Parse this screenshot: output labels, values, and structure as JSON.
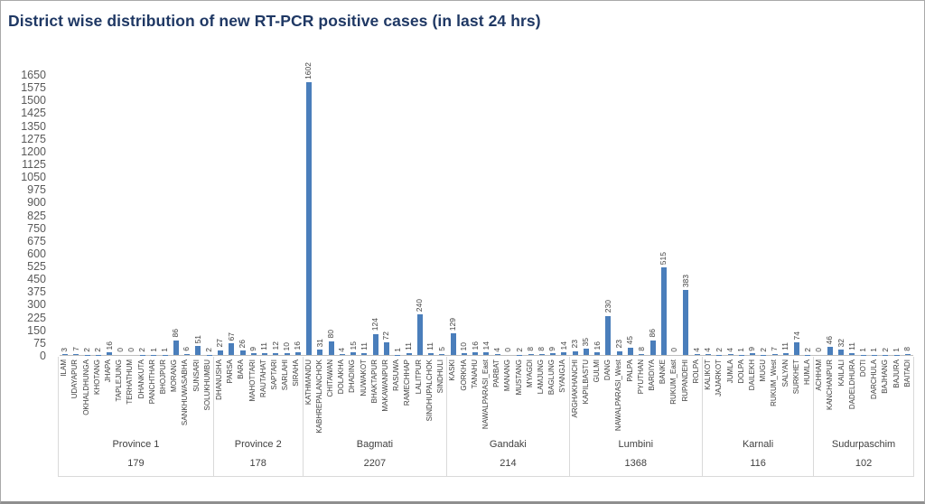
{
  "title_color": "#1F3864",
  "chart_data": {
    "type": "bar",
    "title": "District wise distribution of new RT-PCR positive cases (in last 24 hrs)",
    "xlabel": "",
    "ylabel": "",
    "ylim": [
      0,
      1650
    ],
    "ytick_step": 75,
    "grid": false,
    "legend": false,
    "bar_color": "#4A7EBB",
    "value_labels": "rotated-vertical",
    "groups": [
      {
        "name": "Province 1",
        "total": 179,
        "districts": [
          "ILAM",
          "UDAYAPUR",
          "OKHALDHUNGA",
          "KHOTANG",
          "JHAPA",
          "TAPLEJUNG",
          "TERHATHUM",
          "DHANKUTA",
          "PANCHTHAR",
          "BHOJPUR",
          "MORANG",
          "SANKHUWASABHA",
          "SUNSARI",
          "SOLUKHUMBU"
        ],
        "values": [
          3,
          7,
          2,
          2,
          16,
          0,
          0,
          2,
          1,
          1,
          86,
          6,
          51,
          2
        ]
      },
      {
        "name": "Province 2",
        "total": 178,
        "districts": [
          "DHANUSHA",
          "PARSA",
          "BARA",
          "MAHOTTARI",
          "RAUTAHAT",
          "SAPTARI",
          "SARLAHI",
          "SIRAHA"
        ],
        "values": [
          27,
          67,
          26,
          9,
          11,
          12,
          10,
          16
        ]
      },
      {
        "name": "Bagmati",
        "total": 2207,
        "districts": [
          "KATHMANDU",
          "KABHREPALANCHOK",
          "CHITAWAN",
          "DOLAKHA",
          "DHADING",
          "NUWAKOT",
          "BHAKTAPUR",
          "MAKAWANPUR",
          "RASUWA",
          "RAMECHHAP",
          "LALITPUR",
          "SINDHUPALCHOK",
          "SINDHULI"
        ],
        "values": [
          1602,
          31,
          80,
          4,
          15,
          11,
          124,
          72,
          1,
          11,
          240,
          11,
          5
        ]
      },
      {
        "name": "Gandaki",
        "total": 214,
        "districts": [
          "KASKI",
          "GORKHA",
          "TANAHU",
          "NAWALPARASI_East",
          "PARBAT",
          "MANANG",
          "MUSTANG",
          "MYAGDI",
          "LAMJUNG",
          "BAGLUNG",
          "SYANGJA"
        ],
        "values": [
          129,
          10,
          16,
          14,
          4,
          0,
          2,
          8,
          8,
          9,
          14
        ]
      },
      {
        "name": "Lumbini",
        "total": 1368,
        "districts": [
          "ARGHAKHANCHI",
          "KAPILBASTU",
          "GULMI",
          "DANG",
          "NAWALPARASI_West",
          "PALPA",
          "PYUTHAN",
          "BARDIYA",
          "BANKE",
          "RUKUM_East",
          "RUPANDEHI",
          "ROLPA"
        ],
        "values": [
          23,
          35,
          16,
          230,
          23,
          45,
          8,
          86,
          515,
          0,
          383,
          4
        ]
      },
      {
        "name": "Karnali",
        "total": 116,
        "districts": [
          "KALIKOT",
          "JAJARKOT",
          "JUMLA",
          "DOLPA",
          "DAILEKH",
          "MUGU",
          "RUKUM_West",
          "SALYAN",
          "SURKHET",
          "HUMLA"
        ],
        "values": [
          4,
          2,
          4,
          1,
          9,
          2,
          7,
          11,
          74,
          2
        ]
      },
      {
        "name": "Sudurpaschim",
        "total": 102,
        "districts": [
          "ACHHAM",
          "KANCHANPUR",
          "KAILALI",
          "DADELDHURA",
          "DOTI",
          "DARCHULA",
          "BAJHANG",
          "BAJURA",
          "BAITADI"
        ],
        "values": [
          0,
          46,
          32,
          11,
          1,
          1,
          2,
          1,
          8
        ]
      }
    ]
  }
}
